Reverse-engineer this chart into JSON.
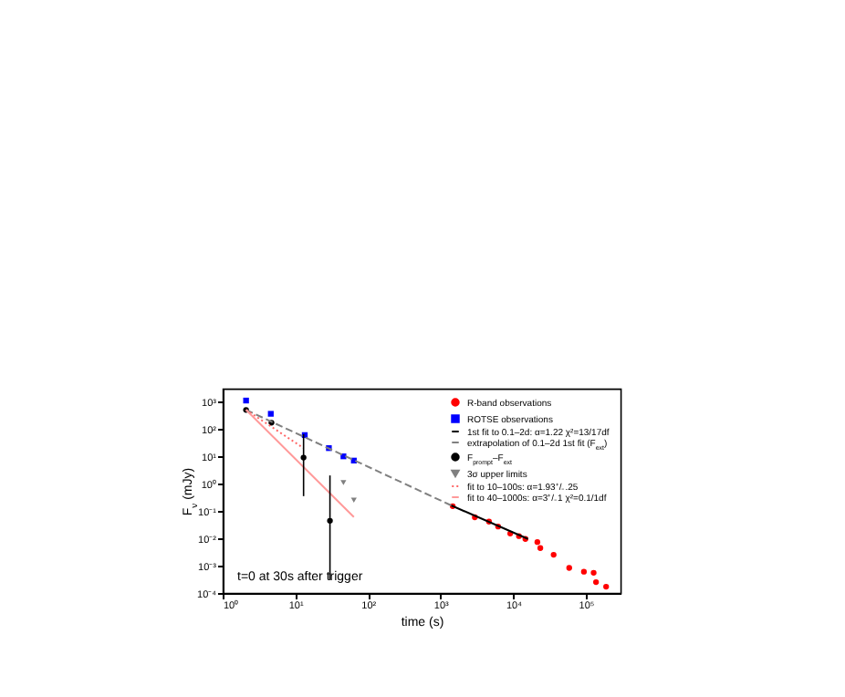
{
  "chart_data": {
    "type": "scatter",
    "xlabel": "time (s)",
    "ylabel": "F$_{ν}$ (mJy)",
    "log": "xy",
    "xlim": [
      1,
      300000
    ],
    "ylim": [
      0.0001,
      3000
    ],
    "xticks": [
      {
        "value": 1,
        "label": "10⁰"
      },
      {
        "value": 10,
        "label": "10¹"
      },
      {
        "value": 100,
        "label": "10²"
      },
      {
        "value": 1000,
        "label": "10³"
      },
      {
        "value": 10000,
        "label": "10⁴"
      },
      {
        "value": 100000,
        "label": "10⁵"
      }
    ],
    "yticks": [
      {
        "value": 0.0001,
        "label": "10⁻⁴"
      },
      {
        "value": 0.001,
        "label": "10⁻³"
      },
      {
        "value": 0.01,
        "label": "10⁻²"
      },
      {
        "value": 0.1,
        "label": "10⁻¹"
      },
      {
        "value": 1,
        "label": "10⁰"
      },
      {
        "value": 10,
        "label": "10¹"
      },
      {
        "value": 100,
        "label": "10²"
      },
      {
        "value": 1000,
        "label": "10³"
      }
    ],
    "legend": "top right",
    "grid": false,
    "annotations": [
      "t=0 at 30s after trigger"
    ],
    "series": [
      {
        "name": "R-band observations",
        "type": "scatter",
        "marker": "circle",
        "color": "#ff0000",
        "x": [
          1470,
          2960,
          4640,
          6200,
          9100,
          12000,
          14700,
          21500,
          23600,
          36000,
          59000,
          94000,
          128000,
          138000,
          190000
        ],
        "values": [
          0.15,
          0.059,
          0.041,
          0.027,
          0.015,
          0.012,
          0.0095,
          0.0073,
          0.0044,
          0.0025,
          0.00083,
          0.0006,
          0.00055,
          0.00025,
          0.00017
        ]
      },
      {
        "name": "ROTSE observations",
        "type": "scatter",
        "marker": "square",
        "color": "#0000ff",
        "x": [
          2.1,
          4.6,
          13.5,
          29,
          46,
          64
        ],
        "values": [
          1100,
          360,
          60,
          20,
          10,
          7
        ]
      },
      {
        "name": "1st fit to 0.1–2d: α=1.22 χ²=13/17df",
        "type": "line",
        "line_style": "solid",
        "color": "#000000",
        "x": [
          1400,
          16000
        ],
        "values": [
          0.16,
          0.0095
        ]
      },
      {
        "name": "extrapolation of 0.1–2d 1st fit (F$_{ext}$)",
        "type": "line",
        "line_style": "dashed",
        "color": "#808080",
        "x": [
          2.1,
          1400
        ],
        "values": [
          500,
          0.16
        ]
      },
      {
        "name": "F$_{prompt}$–F$_{ext}$",
        "type": "scatter",
        "marker": "circle",
        "color": "#000000",
        "x": [
          2.1,
          4.7,
          13,
          30
        ],
        "values": [
          500,
          170,
          9,
          0.044
        ],
        "errors": [
          null,
          null,
          [
            0.35,
            65
          ],
          [
            0.0003,
            2
          ]
        ]
      },
      {
        "name": "3σ upper limits",
        "type": "scatter",
        "marker": "triangle",
        "color": "#808080",
        "x": [
          46,
          64
        ],
        "values": [
          1.1,
          0.25
        ]
      },
      {
        "name": "fit to 10–100s: α=1.93⁺/₋.25",
        "type": "line",
        "line_style": "dotted",
        "color": "#ff6666",
        "x": [
          2.1,
          13
        ],
        "values": [
          500,
          20
        ]
      },
      {
        "name": "fit to 40–1000s: α=3⁺/₋1 χ²=0.1/1df",
        "type": "line",
        "line_style": "solid",
        "color": "#ff9999",
        "x": [
          2.1,
          64
        ],
        "values": [
          500,
          0.06
        ]
      }
    ]
  }
}
